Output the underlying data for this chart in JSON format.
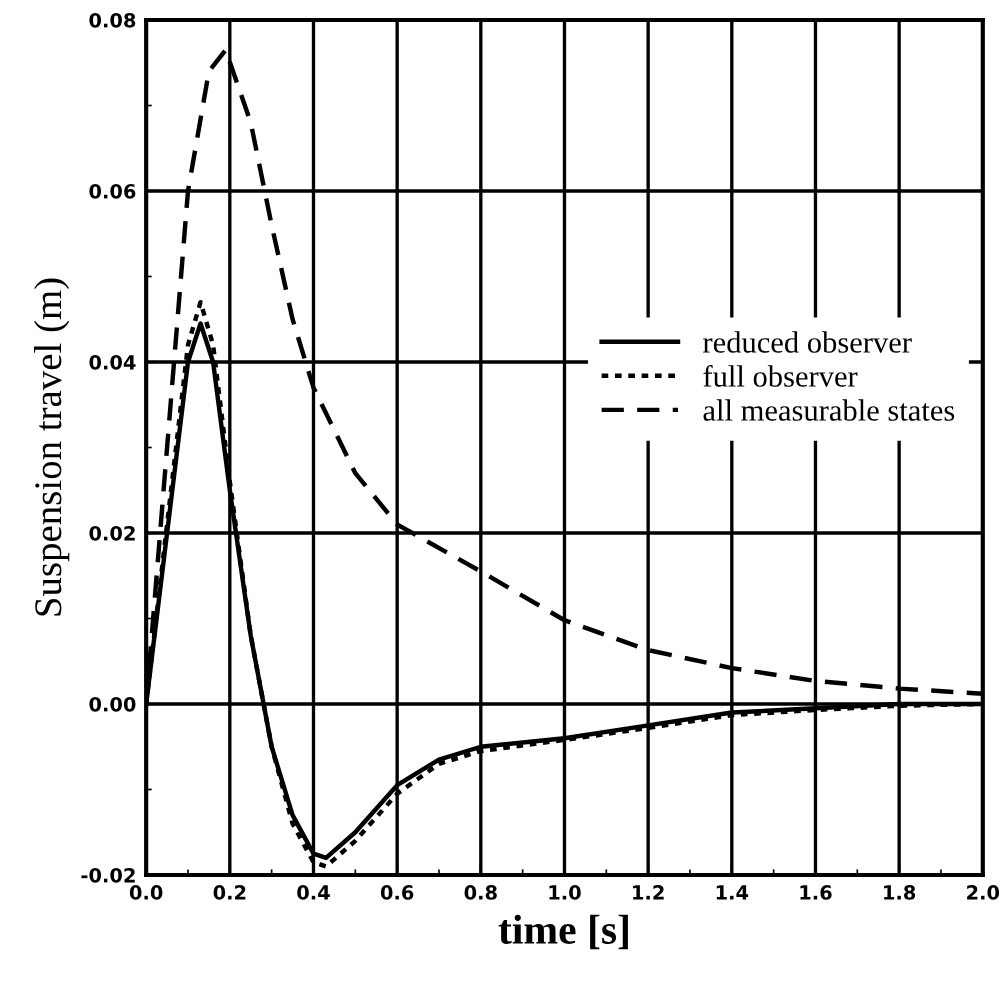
{
  "chart_data": {
    "type": "line",
    "xlabel": "time [s]",
    "ylabel": "Suspension travel (m)",
    "xlim": [
      0,
      2
    ],
    "ylim": [
      -0.02,
      0.08
    ],
    "xticks": [
      {
        "value": 0,
        "label": "0.0"
      },
      {
        "value": 0.1,
        "label": null
      },
      {
        "value": 0.2,
        "label": "0.2"
      },
      {
        "value": 0.3,
        "label": null
      },
      {
        "value": 0.4,
        "label": "0.4"
      },
      {
        "value": 0.5,
        "label": null
      },
      {
        "value": 0.6,
        "label": "0.6"
      },
      {
        "value": 0.7,
        "label": null
      },
      {
        "value": 0.8,
        "label": "0.8"
      },
      {
        "value": 0.9,
        "label": null
      },
      {
        "value": 1.0,
        "label": "1.0"
      },
      {
        "value": 1.1,
        "label": null
      },
      {
        "value": 1.2,
        "label": "1.2"
      },
      {
        "value": 1.3,
        "label": null
      },
      {
        "value": 1.4,
        "label": "1.4"
      },
      {
        "value": 1.5,
        "label": null
      },
      {
        "value": 1.6,
        "label": "1.6"
      },
      {
        "value": 1.7,
        "label": null
      },
      {
        "value": 1.8,
        "label": "1.8"
      },
      {
        "value": 1.9,
        "label": null
      },
      {
        "value": 2.0,
        "label": "2.0"
      }
    ],
    "yticks": [
      {
        "value": -0.02,
        "label": "-0.02"
      },
      {
        "value": -0.01,
        "label": null
      },
      {
        "value": 0,
        "label": "0.00"
      },
      {
        "value": 0.01,
        "label": null
      },
      {
        "value": 0.02,
        "label": "0.02"
      },
      {
        "value": 0.03,
        "label": null
      },
      {
        "value": 0.04,
        "label": "0.04"
      },
      {
        "value": 0.05,
        "label": null
      },
      {
        "value": 0.06,
        "label": "0.06"
      },
      {
        "value": 0.07,
        "label": null
      },
      {
        "value": 0.08,
        "label": "0.08"
      }
    ],
    "grid": true,
    "legend": "right",
    "series": [
      {
        "name": "reduced observer",
        "color": "#000000",
        "line_style": "solid",
        "x": [
          0,
          0.05,
          0.1,
          0.13,
          0.16,
          0.2,
          0.25,
          0.3,
          0.35,
          0.4,
          0.43,
          0.5,
          0.6,
          0.7,
          0.8,
          1.0,
          1.2,
          1.4,
          1.6,
          1.8,
          2.0
        ],
        "values": [
          0,
          0.02,
          0.04,
          0.0445,
          0.04,
          0.025,
          0.008,
          -0.005,
          -0.013,
          -0.0175,
          -0.018,
          -0.015,
          -0.0095,
          -0.0065,
          -0.005,
          -0.004,
          -0.0025,
          -0.001,
          -0.0005,
          0,
          0
        ]
      },
      {
        "name": "full observer",
        "color": "#000000",
        "line_style": "dotted",
        "x": [
          0,
          0.05,
          0.1,
          0.13,
          0.16,
          0.2,
          0.25,
          0.3,
          0.35,
          0.4,
          0.43,
          0.5,
          0.6,
          0.7,
          0.8,
          1.0,
          1.2,
          1.4,
          1.6,
          1.8,
          2.0
        ],
        "values": [
          0,
          0.021,
          0.042,
          0.047,
          0.042,
          0.026,
          0.008,
          -0.005,
          -0.014,
          -0.0185,
          -0.019,
          -0.016,
          -0.0105,
          -0.007,
          -0.0055,
          -0.0042,
          -0.0028,
          -0.0013,
          -0.0007,
          -0.0002,
          0
        ]
      },
      {
        "name": "all measurable states",
        "color": "#000000",
        "line_style": "dashed",
        "x": [
          0,
          0.05,
          0.1,
          0.15,
          0.19,
          0.25,
          0.3,
          0.35,
          0.4,
          0.5,
          0.6,
          0.8,
          1.0,
          1.2,
          1.4,
          1.6,
          1.8,
          2.0
        ],
        "values": [
          0,
          0.03,
          0.06,
          0.074,
          0.0765,
          0.068,
          0.056,
          0.045,
          0.037,
          0.027,
          0.021,
          0.0155,
          0.0098,
          0.0063,
          0.0042,
          0.0027,
          0.0018,
          0.0012
        ]
      }
    ]
  }
}
